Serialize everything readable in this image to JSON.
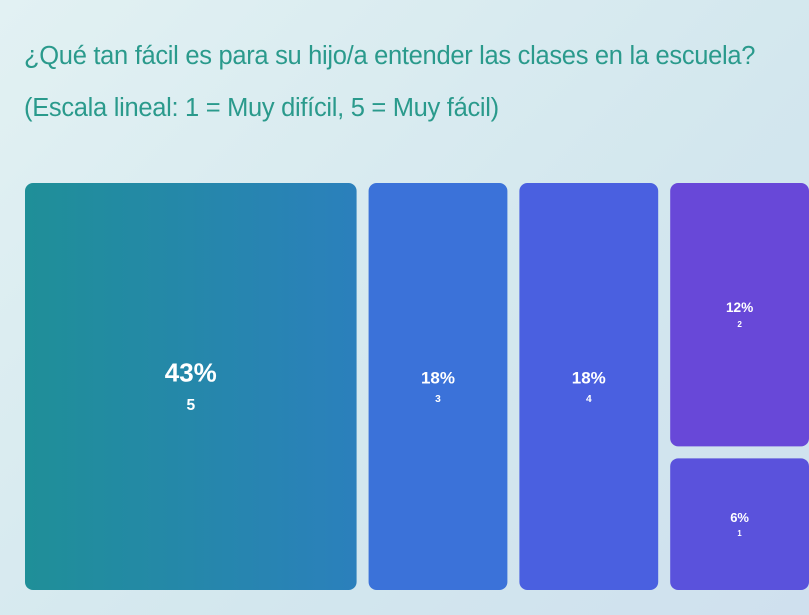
{
  "chart_data": {
    "type": "treemap",
    "title": "¿Qué tan fácil es para su hijo/a entender las clases en la escuela? (Escala lineal: 1 = Muy difícil, 5 = Muy fácil)",
    "categories": [
      "5",
      "3",
      "4",
      "2",
      "1"
    ],
    "values": [
      43,
      18,
      18,
      12,
      6
    ],
    "value_labels": [
      "43%",
      "18%",
      "18%",
      "12%",
      "6%"
    ],
    "colors": [
      "#2389a4",
      "#3b72d9",
      "#4a60e0",
      "#6848d8",
      "#5a52dc"
    ]
  }
}
